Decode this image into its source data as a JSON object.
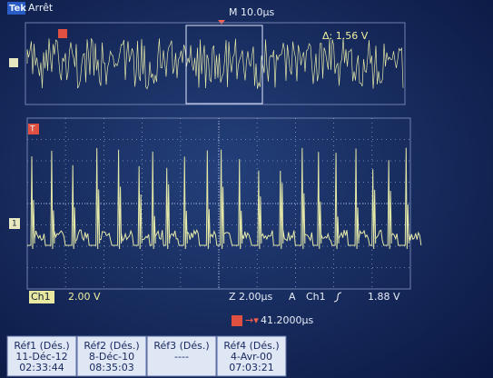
{
  "header": {
    "brand": "Tek",
    "state": "Arrêt",
    "timebase": "M 10.0µs"
  },
  "overview": {
    "cursor": "Δ: 1.56 V"
  },
  "markers": {
    "trigger": "T",
    "channel": "1"
  },
  "status": {
    "channel": "Ch1",
    "scale": "2.00 V",
    "zoom": "Z 2.00µs",
    "trigger_mode": "A",
    "trigger_source": "Ch1",
    "trigger_level": "1.88 V",
    "position": "41.2000µs"
  },
  "references": [
    {
      "name": "Réf1 (Dés.)",
      "date": "11-Déc-12",
      "time": "02:33:44"
    },
    {
      "name": "Réf2 (Dés.)",
      "date": "8-Déc-10",
      "time": "08:35:03"
    },
    {
      "name": "Réf3 (Dés.)",
      "date": "----"
    },
    {
      "name": "Réf4 (Dés.)",
      "date": "4-Avr-00",
      "time": "07:03:21"
    }
  ]
}
